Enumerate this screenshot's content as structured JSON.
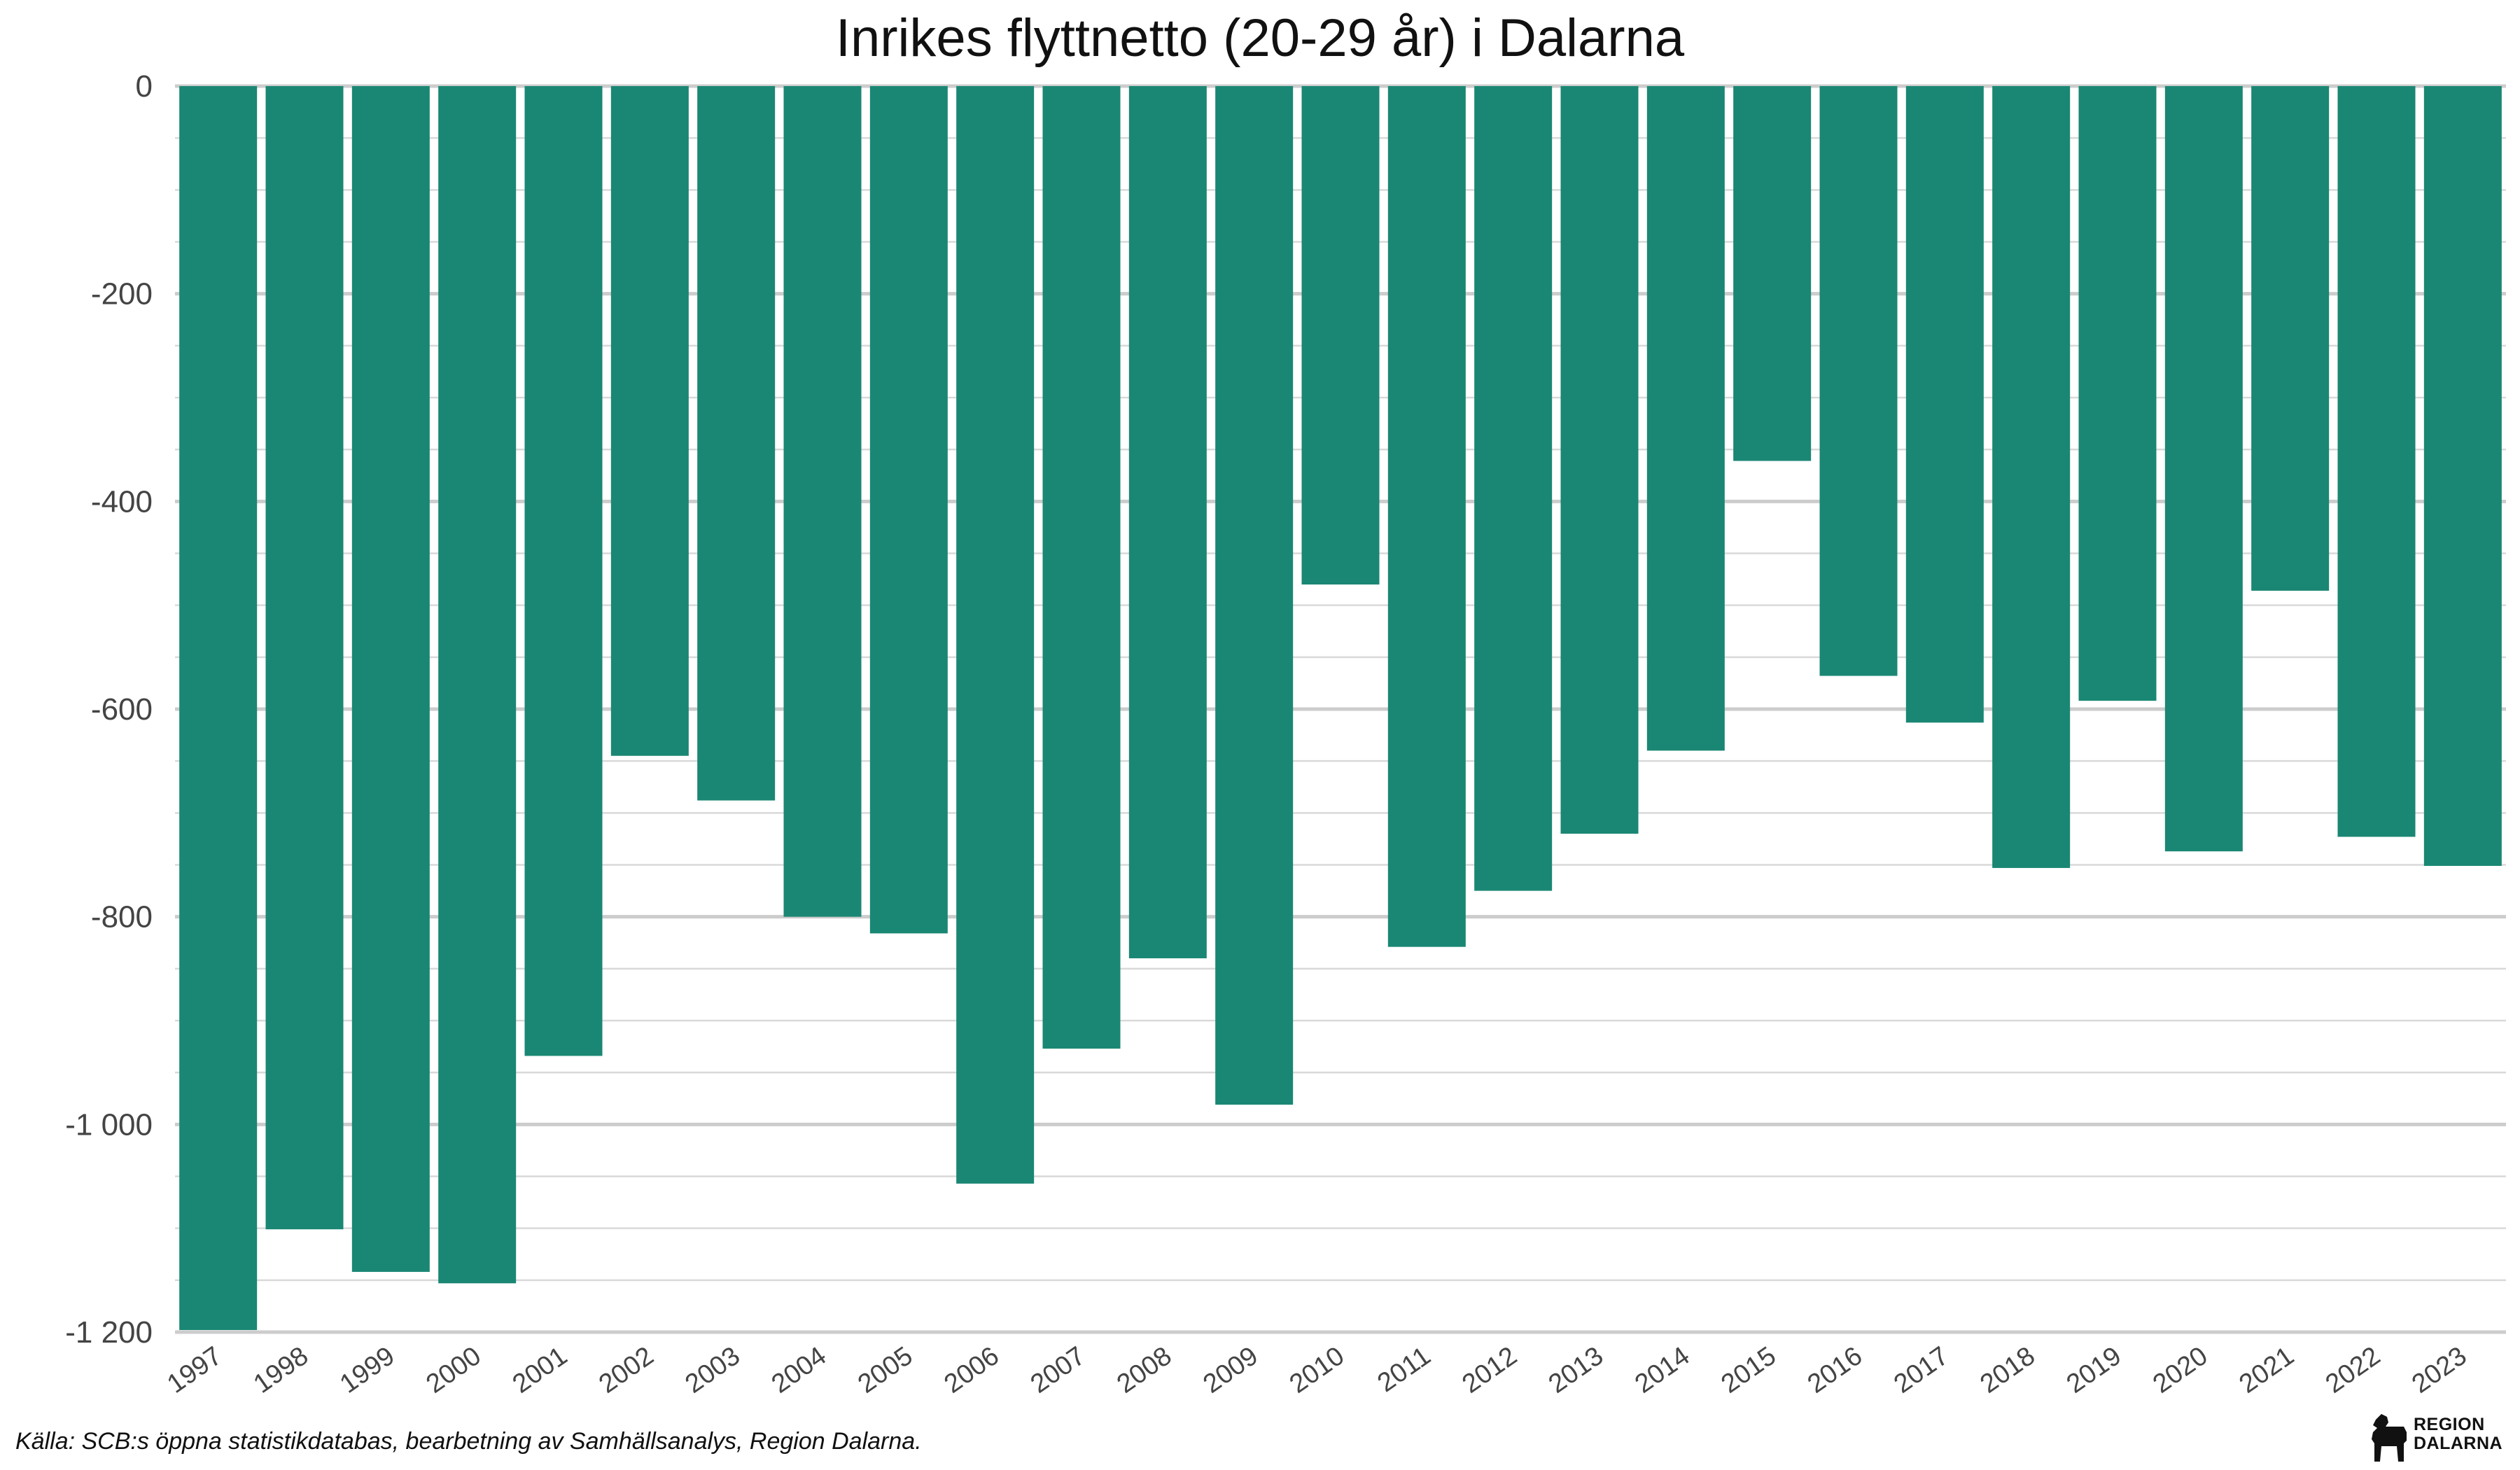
{
  "title": "Inrikes flyttnetto (20-29 år) i Dalarna",
  "caption": "Källa: SCB:s öppna statistikdatabas, bearbetning av Samhällsanalys, Region Dalarna.",
  "logo": {
    "line1": "REGION",
    "line2": "DALARNA",
    "icon": "dalecarlian-horse-icon"
  },
  "colors": {
    "bar": "#1a8774",
    "grid_major": "#cccccc",
    "grid_minor": "#d9d9d9",
    "text": "#444444"
  },
  "chart_data": {
    "type": "bar",
    "title": "Inrikes flyttnetto (20-29 år) i Dalarna",
    "xlabel": "",
    "ylabel": "",
    "ylim": [
      -1200,
      0
    ],
    "y_ticks": [
      0,
      -200,
      -400,
      -600,
      -800,
      -1000,
      -1200
    ],
    "y_tick_labels": [
      "0",
      "-200",
      "-400",
      "-600",
      "-800",
      "-1 000",
      "-1 200"
    ],
    "grid": true,
    "categories": [
      "1997",
      "1998",
      "1999",
      "2000",
      "2001",
      "2002",
      "2003",
      "2004",
      "2005",
      "2006",
      "2007",
      "2008",
      "2009",
      "2010",
      "2011",
      "2012",
      "2013",
      "2014",
      "2015",
      "2016",
      "2017",
      "2018",
      "2019",
      "2020",
      "2021",
      "2022",
      "2023"
    ],
    "values": [
      -1198,
      -1101,
      -1142,
      -1153,
      -934,
      -645,
      -688,
      -800,
      -816,
      -1057,
      -927,
      -840,
      -981,
      -480,
      -829,
      -775,
      -720,
      -640,
      -361,
      -568,
      -613,
      -753,
      -592,
      -737,
      -486,
      -723,
      -751
    ]
  }
}
